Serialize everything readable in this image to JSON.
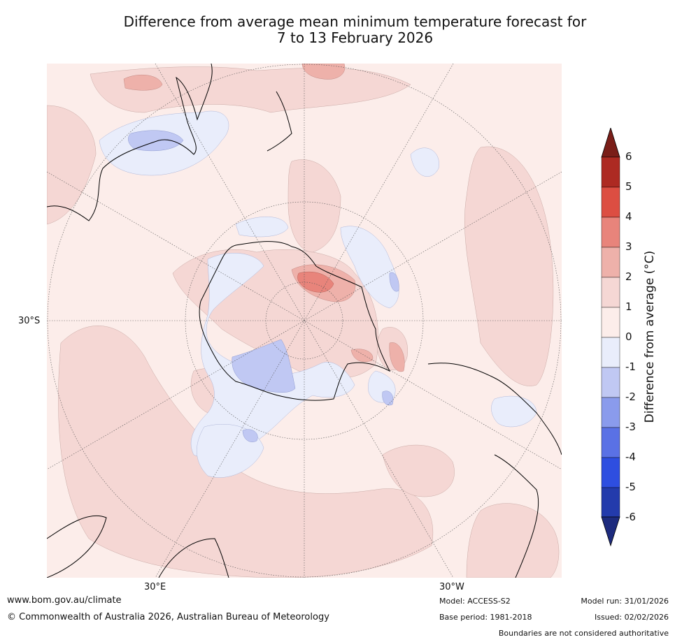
{
  "title": {
    "line1": "Difference from average mean minimum temperature forecast for",
    "line2": "7 to 13 February 2026"
  },
  "map": {
    "projection": "south-polar-stereographic",
    "lat_label": "30°S",
    "lon_label_east": "30°E",
    "lon_label_west": "30°W"
  },
  "colorbar": {
    "title": "Difference from average (°C)",
    "ticks": [
      "6",
      "5",
      "4",
      "3",
      "2",
      "1",
      "0",
      "-1",
      "-2",
      "-3",
      "-4",
      "-5",
      "-6"
    ],
    "bins": [
      {
        "range": "above 6",
        "color": "#7a1e18"
      },
      {
        "range": "5 to 6",
        "color": "#ad2a22"
      },
      {
        "range": "4 to 5",
        "color": "#dc4e42"
      },
      {
        "range": "3 to 4",
        "color": "#e8847b"
      },
      {
        "range": "2 to 3",
        "color": "#eeb1aa"
      },
      {
        "range": "1 to 2",
        "color": "#f5d7d4"
      },
      {
        "range": "0 to 1",
        "color": "#fcedea"
      },
      {
        "range": "-1 to 0",
        "color": "#e9edfb"
      },
      {
        "range": "-2 to -1",
        "color": "#c0c8f3"
      },
      {
        "range": "-3 to -2",
        "color": "#8a9bec"
      },
      {
        "range": "-4 to -3",
        "color": "#5a71e5"
      },
      {
        "range": "-5 to -4",
        "color": "#2e4ee0"
      },
      {
        "range": "-6 to -5",
        "color": "#233bac"
      },
      {
        "range": "below -6",
        "color": "#1d2b7e"
      }
    ]
  },
  "footer": {
    "url": "www.bom.gov.au/climate",
    "copyright": "© Commonwealth of Australia 2026, Australian Bureau of Meteorology",
    "model": "Model: ACCESS-S2",
    "base_period": "Base period: 1981-2018",
    "model_run": "Model run: 31/01/2026",
    "issued": "Issued: 02/02/2026",
    "disclaimer": "Boundaries are not considered authoritative"
  }
}
